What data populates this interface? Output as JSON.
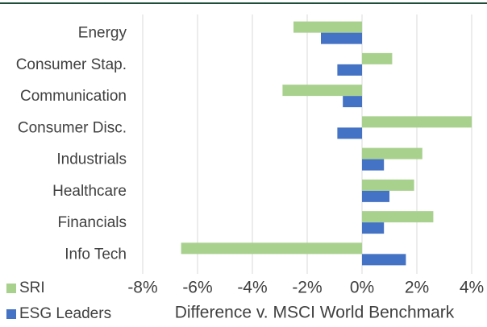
{
  "chart_data": {
    "type": "hbar",
    "categories": [
      "Energy",
      "Consumer Stap.",
      "Communication",
      "Consumer Disc.",
      "Industrials",
      "Healthcare",
      "Financials",
      "Info Tech"
    ],
    "series": [
      {
        "name": "SRI",
        "color": "#a9d18e",
        "values": [
          -2.5,
          1.1,
          -2.9,
          4.0,
          2.2,
          1.9,
          2.6,
          -6.6
        ]
      },
      {
        "name": "ESG Leaders",
        "color": "#4472c4",
        "values": [
          -1.5,
          -0.9,
          -0.7,
          -0.9,
          0.8,
          1.0,
          0.8,
          1.6
        ]
      }
    ],
    "xlim": [
      -8,
      4
    ],
    "xticks": [
      {
        "value": -8,
        "label": "-8%"
      },
      {
        "value": -6,
        "label": "-6%"
      },
      {
        "value": -4,
        "label": "-4%"
      },
      {
        "value": -2,
        "label": "-2%"
      },
      {
        "value": 0,
        "label": "0%"
      },
      {
        "value": 2,
        "label": "2%"
      },
      {
        "value": 4,
        "label": "4%"
      }
    ],
    "xlabel": "Difference v. MSCI World Benchmark",
    "grid": true,
    "legend": "bottom-left"
  }
}
